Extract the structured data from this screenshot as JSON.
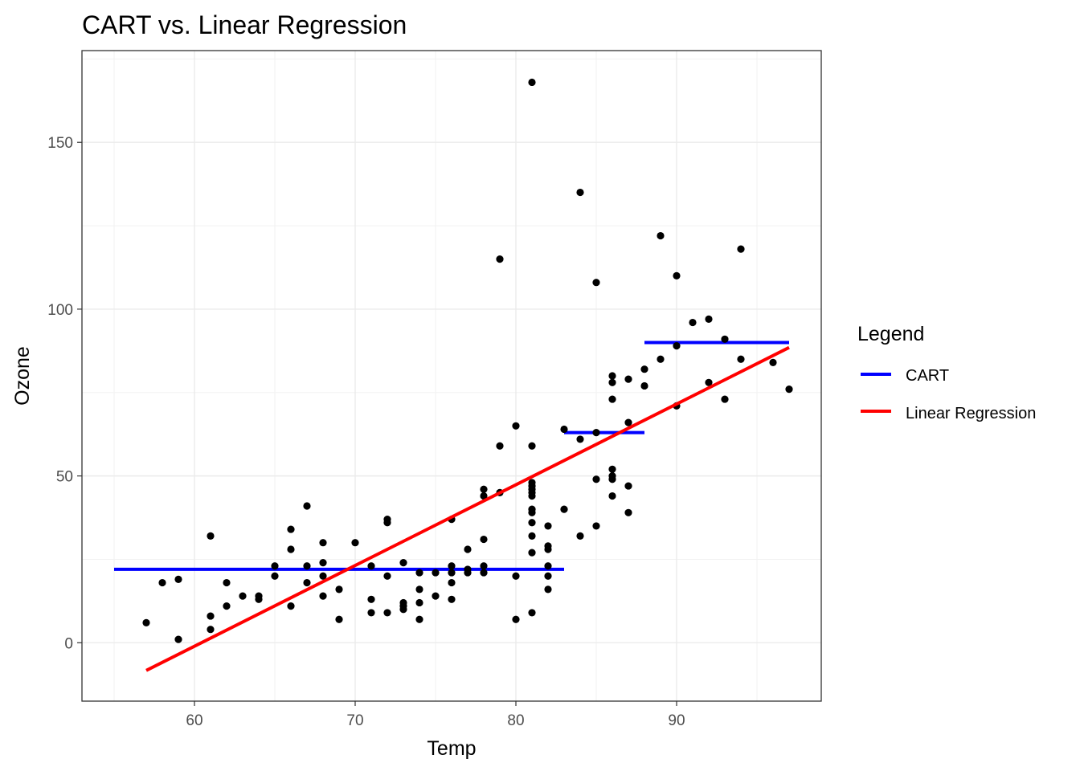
{
  "chart_data": {
    "type": "scatter",
    "title": "CART vs. Linear Regression",
    "xlabel": "Temp",
    "ylabel": "Ozone",
    "xlim": [
      53,
      99
    ],
    "ylim": [
      -17.5,
      177.5
    ],
    "x_ticks": [
      60,
      70,
      80,
      90
    ],
    "y_ticks": [
      0,
      50,
      100,
      150
    ],
    "grid": true,
    "legend": {
      "title": "Legend",
      "position": "right",
      "entries": [
        {
          "label": "CART",
          "color": "#0000ff"
        },
        {
          "label": "Linear Regression",
          "color": "#ff0000"
        }
      ]
    },
    "points": {
      "color": "#000000",
      "x": [
        57,
        58,
        59,
        59,
        61,
        61,
        61,
        62,
        62,
        63,
        64,
        64,
        65,
        65,
        66,
        66,
        66,
        67,
        67,
        67,
        68,
        68,
        68,
        68,
        69,
        69,
        70,
        71,
        71,
        71,
        72,
        72,
        72,
        72,
        73,
        73,
        73,
        73,
        74,
        74,
        74,
        74,
        75,
        75,
        76,
        76,
        76,
        76,
        76,
        77,
        77,
        77,
        78,
        78,
        78,
        78,
        78,
        79,
        79,
        79,
        80,
        80,
        80,
        81,
        81,
        81,
        81,
        81,
        81,
        81,
        81,
        81,
        81,
        81,
        81,
        81,
        82,
        82,
        82,
        82,
        82,
        82,
        83,
        83,
        84,
        84,
        84,
        85,
        85,
        85,
        85,
        86,
        86,
        86,
        86,
        86,
        86,
        86,
        87,
        87,
        87,
        87,
        88,
        88,
        89,
        89,
        90,
        90,
        90,
        91,
        92,
        92,
        93,
        93,
        94,
        94,
        96,
        97
      ],
      "y": [
        6,
        18,
        1,
        19,
        4,
        8,
        32,
        11,
        18,
        14,
        13,
        14,
        20,
        23,
        11,
        28,
        34,
        18,
        23,
        41,
        14,
        20,
        24,
        30,
        7,
        16,
        30,
        13,
        9,
        23,
        9,
        36,
        37,
        20,
        10,
        11,
        12,
        24,
        7,
        12,
        16,
        21,
        14,
        21,
        13,
        18,
        21,
        23,
        37,
        21,
        22,
        28,
        23,
        31,
        44,
        46,
        21,
        45,
        59,
        115,
        7,
        20,
        65,
        9,
        27,
        32,
        36,
        39,
        44,
        45,
        48,
        59,
        168,
        46,
        47,
        40,
        16,
        20,
        23,
        28,
        29,
        35,
        40,
        64,
        32,
        61,
        135,
        35,
        49,
        63,
        108,
        44,
        50,
        52,
        73,
        78,
        80,
        49,
        39,
        47,
        66,
        79,
        77,
        82,
        85,
        122,
        71,
        89,
        110,
        96,
        78,
        97,
        73,
        91,
        85,
        118,
        84,
        76
      ]
    },
    "series": [
      {
        "name": "CART",
        "type": "step",
        "color": "#0000ff",
        "segments": [
          {
            "x": [
              55,
              83
            ],
            "y": 22
          },
          {
            "x": [
              83,
              88
            ],
            "y": 63
          },
          {
            "x": [
              88,
              97
            ],
            "y": 90
          }
        ]
      },
      {
        "name": "Linear Regression",
        "type": "line",
        "color": "#ff0000",
        "x": [
          57,
          97
        ],
        "y": [
          -8.3,
          88.5
        ]
      }
    ]
  }
}
